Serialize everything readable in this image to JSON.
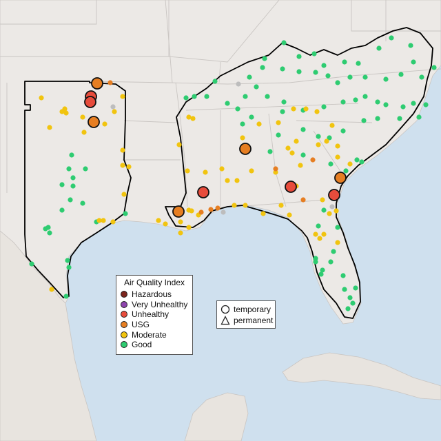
{
  "map": {
    "monitor_colors": {
      "good": "#2ecc71",
      "moderate": "#f1c40f",
      "usg": "#e67e22",
      "unhealthy": "#e74c3c",
      "very_unhealthy": "#8e44ad",
      "hazardous": "#7b241c",
      "no_data": "#bdbdbd"
    }
  },
  "legend_aqi": {
    "title": "Air Quality Index",
    "items": [
      {
        "label": "Hazardous",
        "color": "#7b241c"
      },
      {
        "label": "Very Unhealthy",
        "color": "#8e44ad"
      },
      {
        "label": "Unhealthy",
        "color": "#e74c3c"
      },
      {
        "label": "USG",
        "color": "#e67e22"
      },
      {
        "label": "Moderate",
        "color": "#f1c40f"
      },
      {
        "label": "Good",
        "color": "#2ecc71"
      }
    ]
  },
  "legend_shape": {
    "items": [
      {
        "label": "temporary",
        "icon": "circle-outline-icon"
      },
      {
        "label": "permanent",
        "icon": "triangle-outline-icon"
      }
    ]
  }
}
